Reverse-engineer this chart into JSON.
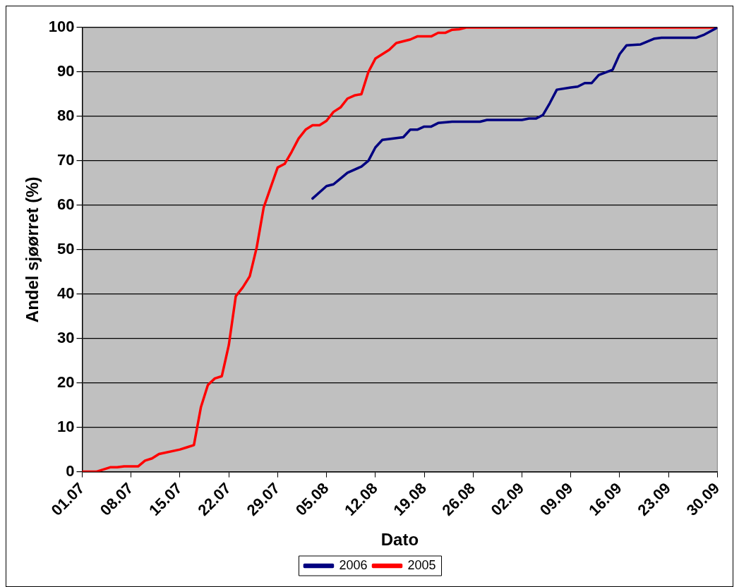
{
  "chart_data": {
    "type": "line",
    "xlabel": "Dato",
    "ylabel": "Andel sjøørret (%)",
    "xlim": [
      "--07-01",
      "--09-30"
    ],
    "xticks": [
      {
        "value": "--07-01",
        "label": "01.07"
      },
      {
        "value": "--07-08",
        "label": "08.07"
      },
      {
        "value": "--07-15",
        "label": "15.07"
      },
      {
        "value": "--07-22",
        "label": "22.07"
      },
      {
        "value": "--07-29",
        "label": "29.07"
      },
      {
        "value": "--08-05",
        "label": "05.08"
      },
      {
        "value": "--08-12",
        "label": "12.08"
      },
      {
        "value": "--08-19",
        "label": "19.08"
      },
      {
        "value": "--08-26",
        "label": "26.08"
      },
      {
        "value": "--09-02",
        "label": "02.09"
      },
      {
        "value": "--09-09",
        "label": "09.09"
      },
      {
        "value": "--09-16",
        "label": "16.09"
      },
      {
        "value": "--09-23",
        "label": "23.09"
      },
      {
        "value": "--09-30",
        "label": "30.09"
      }
    ],
    "ylim": [
      0,
      100
    ],
    "yticks": [
      0,
      10,
      20,
      30,
      40,
      50,
      60,
      70,
      80,
      90,
      100
    ],
    "grid": "y",
    "legend": "bottom",
    "marker": "none",
    "line_style": "solid",
    "series": [
      {
        "name": "2006",
        "color": "#000080",
        "x": [
          "--08-03",
          "--08-05",
          "--08-06",
          "--08-07",
          "--08-08",
          "--08-10",
          "--08-11",
          "--08-12",
          "--08-13",
          "--08-16",
          "--08-17",
          "--08-18",
          "--08-19",
          "--08-20",
          "--08-21",
          "--08-23",
          "--08-27",
          "--08-28",
          "--09-02",
          "--09-03",
          "--09-04",
          "--09-05",
          "--09-06",
          "--09-07",
          "--09-09",
          "--09-10",
          "--09-11",
          "--09-12",
          "--09-13",
          "--09-15",
          "--09-16",
          "--09-17",
          "--09-19",
          "--09-21",
          "--09-22",
          "--09-27",
          "--09-28",
          "--09-30"
        ],
        "values": [
          61.5,
          64.3,
          64.7,
          66,
          67.3,
          68.7,
          70,
          73,
          74.7,
          75.3,
          77,
          77,
          77.7,
          77.7,
          78.5,
          78.8,
          78.8,
          79.2,
          79.2,
          79.5,
          79.5,
          80.3,
          83,
          86,
          86.5,
          86.7,
          87.5,
          87.5,
          89.3,
          90.5,
          94,
          96,
          96.2,
          97.5,
          97.7,
          97.7,
          98.3,
          100
        ]
      },
      {
        "name": "2005",
        "color": "#ff0000",
        "x": [
          "--07-01",
          "--07-03",
          "--07-05",
          "--07-06",
          "--07-07",
          "--07-09",
          "--07-10",
          "--07-11",
          "--07-12",
          "--07-15",
          "--07-16",
          "--07-17",
          "--07-18",
          "--07-19",
          "--07-20",
          "--07-21",
          "--07-22",
          "--07-23",
          "--07-24",
          "--07-25",
          "--07-26",
          "--07-27",
          "--07-28",
          "--07-29",
          "--07-30",
          "--07-31",
          "--08-01",
          "--08-02",
          "--08-03",
          "--08-04",
          "--08-05",
          "--08-06",
          "--08-07",
          "--08-08",
          "--08-09",
          "--08-10",
          "--08-11",
          "--08-12",
          "--08-13",
          "--08-14",
          "--08-15",
          "--08-17",
          "--08-18",
          "--08-20",
          "--08-21",
          "--08-22",
          "--08-23",
          "--08-24",
          "--08-25",
          "--09-30"
        ],
        "values": [
          0,
          0,
          1,
          1,
          1.2,
          1.2,
          2.5,
          3,
          4,
          5,
          5.5,
          6,
          14.5,
          19.5,
          21,
          21.5,
          28.5,
          39.5,
          41.5,
          44,
          50.5,
          59.5,
          64,
          68.5,
          69.3,
          72,
          75,
          77,
          78,
          78,
          79,
          81,
          82,
          84,
          84.7,
          85,
          90,
          93,
          94,
          95,
          96.5,
          97.3,
          98,
          98,
          98.8,
          98.8,
          99.5,
          99.6,
          100,
          100
        ]
      }
    ]
  }
}
